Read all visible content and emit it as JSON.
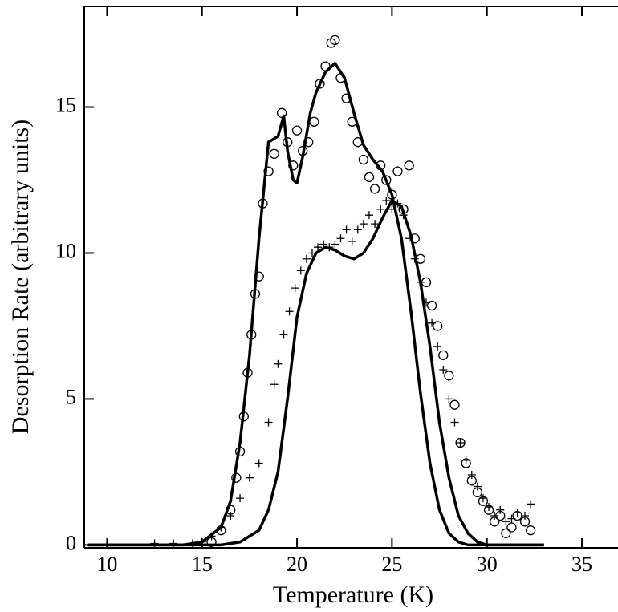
{
  "chart_data": {
    "type": "scatter",
    "xlabel": "Temperature (K)",
    "ylabel": "Desorption Rate (arbitrary units)",
    "xlim": [
      8.8,
      36.9
    ],
    "ylim": [
      -0.1,
      18.45
    ],
    "xticks": [
      10,
      15,
      20,
      25,
      30,
      35
    ],
    "yticks": [
      0,
      5,
      10,
      15
    ],
    "series": [
      {
        "mode": "markers",
        "marker": "circle",
        "color": "#000000",
        "x": [
          15.5,
          16,
          16.5,
          16.8,
          17,
          17.2,
          17.4,
          17.6,
          17.8,
          18,
          18.2,
          18.5,
          18.8,
          19.2,
          19.5,
          19.8,
          20,
          20.3,
          20.6,
          20.9,
          21.2,
          21.5,
          21.8,
          22,
          22.3,
          22.6,
          22.9,
          23.2,
          23.5,
          23.8,
          24.1,
          24.4,
          24.7,
          25,
          25.3,
          25.6,
          25.9,
          26.2,
          26.5,
          26.8,
          27.1,
          27.4,
          27.7,
          28,
          28.3,
          28.6,
          28.9,
          29.2,
          29.5,
          29.8,
          30.1,
          30.4,
          30.7,
          31,
          31.3,
          31.6,
          32,
          32.3
        ],
        "values": [
          0.1,
          0.5,
          1.2,
          2.3,
          3.2,
          4.4,
          5.9,
          7.2,
          8.6,
          9.2,
          11.7,
          12.8,
          13.4,
          14.8,
          13.8,
          13.0,
          14.2,
          13.5,
          13.8,
          14.5,
          15.8,
          16.4,
          17.2,
          17.3,
          16.0,
          15.3,
          14.5,
          13.8,
          13.2,
          12.6,
          12.2,
          13.0,
          12.5,
          12.0,
          12.8,
          11.5,
          13.0,
          10.5,
          9.8,
          9.0,
          8.2,
          7.5,
          6.5,
          5.8,
          4.8,
          3.5,
          2.8,
          2.2,
          1.8,
          1.5,
          1.2,
          0.8,
          1.0,
          0.4,
          0.6,
          1.0,
          0.8,
          0.5
        ]
      },
      {
        "mode": "markers",
        "marker": "plus",
        "color": "#000000",
        "x": [
          12.5,
          13.5,
          14.5,
          15,
          15.5,
          16,
          16.5,
          17,
          17.5,
          18,
          18.5,
          18.8,
          19,
          19.3,
          19.6,
          19.9,
          20.2,
          20.5,
          20.8,
          21.1,
          21.4,
          21.7,
          22,
          22.3,
          22.6,
          22.9,
          23.2,
          23.5,
          23.8,
          24.1,
          24.4,
          24.7,
          25,
          25.3,
          25.6,
          25.9,
          26.2,
          26.5,
          26.8,
          27.1,
          27.4,
          27.7,
          28,
          28.3,
          28.6,
          28.9,
          29.2,
          29.5,
          29.8,
          30.1,
          30.4,
          30.7,
          31,
          31.3,
          31.6,
          32,
          32.3
        ],
        "values": [
          0.05,
          0.05,
          0.05,
          0.1,
          0.3,
          0.6,
          1.0,
          1.6,
          2.3,
          2.8,
          4.2,
          5.5,
          6.2,
          7.2,
          8.0,
          8.8,
          9.4,
          9.8,
          10.0,
          10.2,
          10.3,
          10.2,
          10.3,
          10.5,
          10.8,
          10.4,
          10.8,
          11.0,
          11.3,
          11.0,
          11.5,
          11.8,
          11.5,
          11.7,
          11.3,
          10.5,
          9.8,
          9.0,
          8.3,
          7.6,
          6.8,
          6.0,
          5.0,
          4.2,
          3.5,
          2.9,
          2.4,
          2.0,
          1.6,
          1.3,
          1.0,
          1.2,
          0.8,
          0.9,
          1.1,
          1.0,
          1.4
        ]
      },
      {
        "mode": "line",
        "color": "#000000",
        "x": [
          9,
          14,
          15,
          16,
          16.5,
          17,
          17.5,
          18,
          18.5,
          19,
          19.3,
          19.5,
          19.8,
          20,
          20.3,
          20.7,
          21,
          21.5,
          22,
          22.5,
          23,
          23.5,
          24,
          24.5,
          25,
          25.5,
          26,
          26.5,
          27,
          27.5,
          28,
          28.5,
          29,
          29.5,
          30,
          31,
          33
        ],
        "values": [
          0,
          0,
          0.1,
          0.6,
          1.5,
          3.5,
          6.5,
          10.5,
          13.8,
          14.0,
          14.7,
          13.5,
          12.5,
          12.4,
          13.3,
          14.8,
          15.5,
          16.2,
          16.5,
          16.0,
          14.8,
          13.7,
          13.2,
          12.8,
          12.0,
          10.5,
          8.0,
          5.2,
          2.8,
          1.2,
          0.4,
          0.1,
          0,
          0,
          0,
          0,
          0
        ]
      },
      {
        "mode": "line",
        "color": "#000000",
        "x": [
          9,
          16,
          17,
          18,
          18.5,
          19,
          19.5,
          20,
          20.5,
          21,
          21.5,
          22,
          22.5,
          23,
          23.5,
          24,
          24.5,
          25,
          25.5,
          26,
          26.5,
          27,
          27.5,
          28,
          28.5,
          29,
          29.5,
          30,
          33
        ],
        "values": [
          0,
          0,
          0.1,
          0.5,
          1.2,
          2.5,
          5.0,
          7.8,
          9.3,
          10.0,
          10.2,
          10.1,
          9.9,
          9.8,
          10.0,
          10.5,
          11.2,
          11.8,
          11.6,
          10.6,
          9.0,
          6.8,
          4.2,
          2.3,
          1.0,
          0.4,
          0.1,
          0,
          0
        ]
      }
    ]
  }
}
